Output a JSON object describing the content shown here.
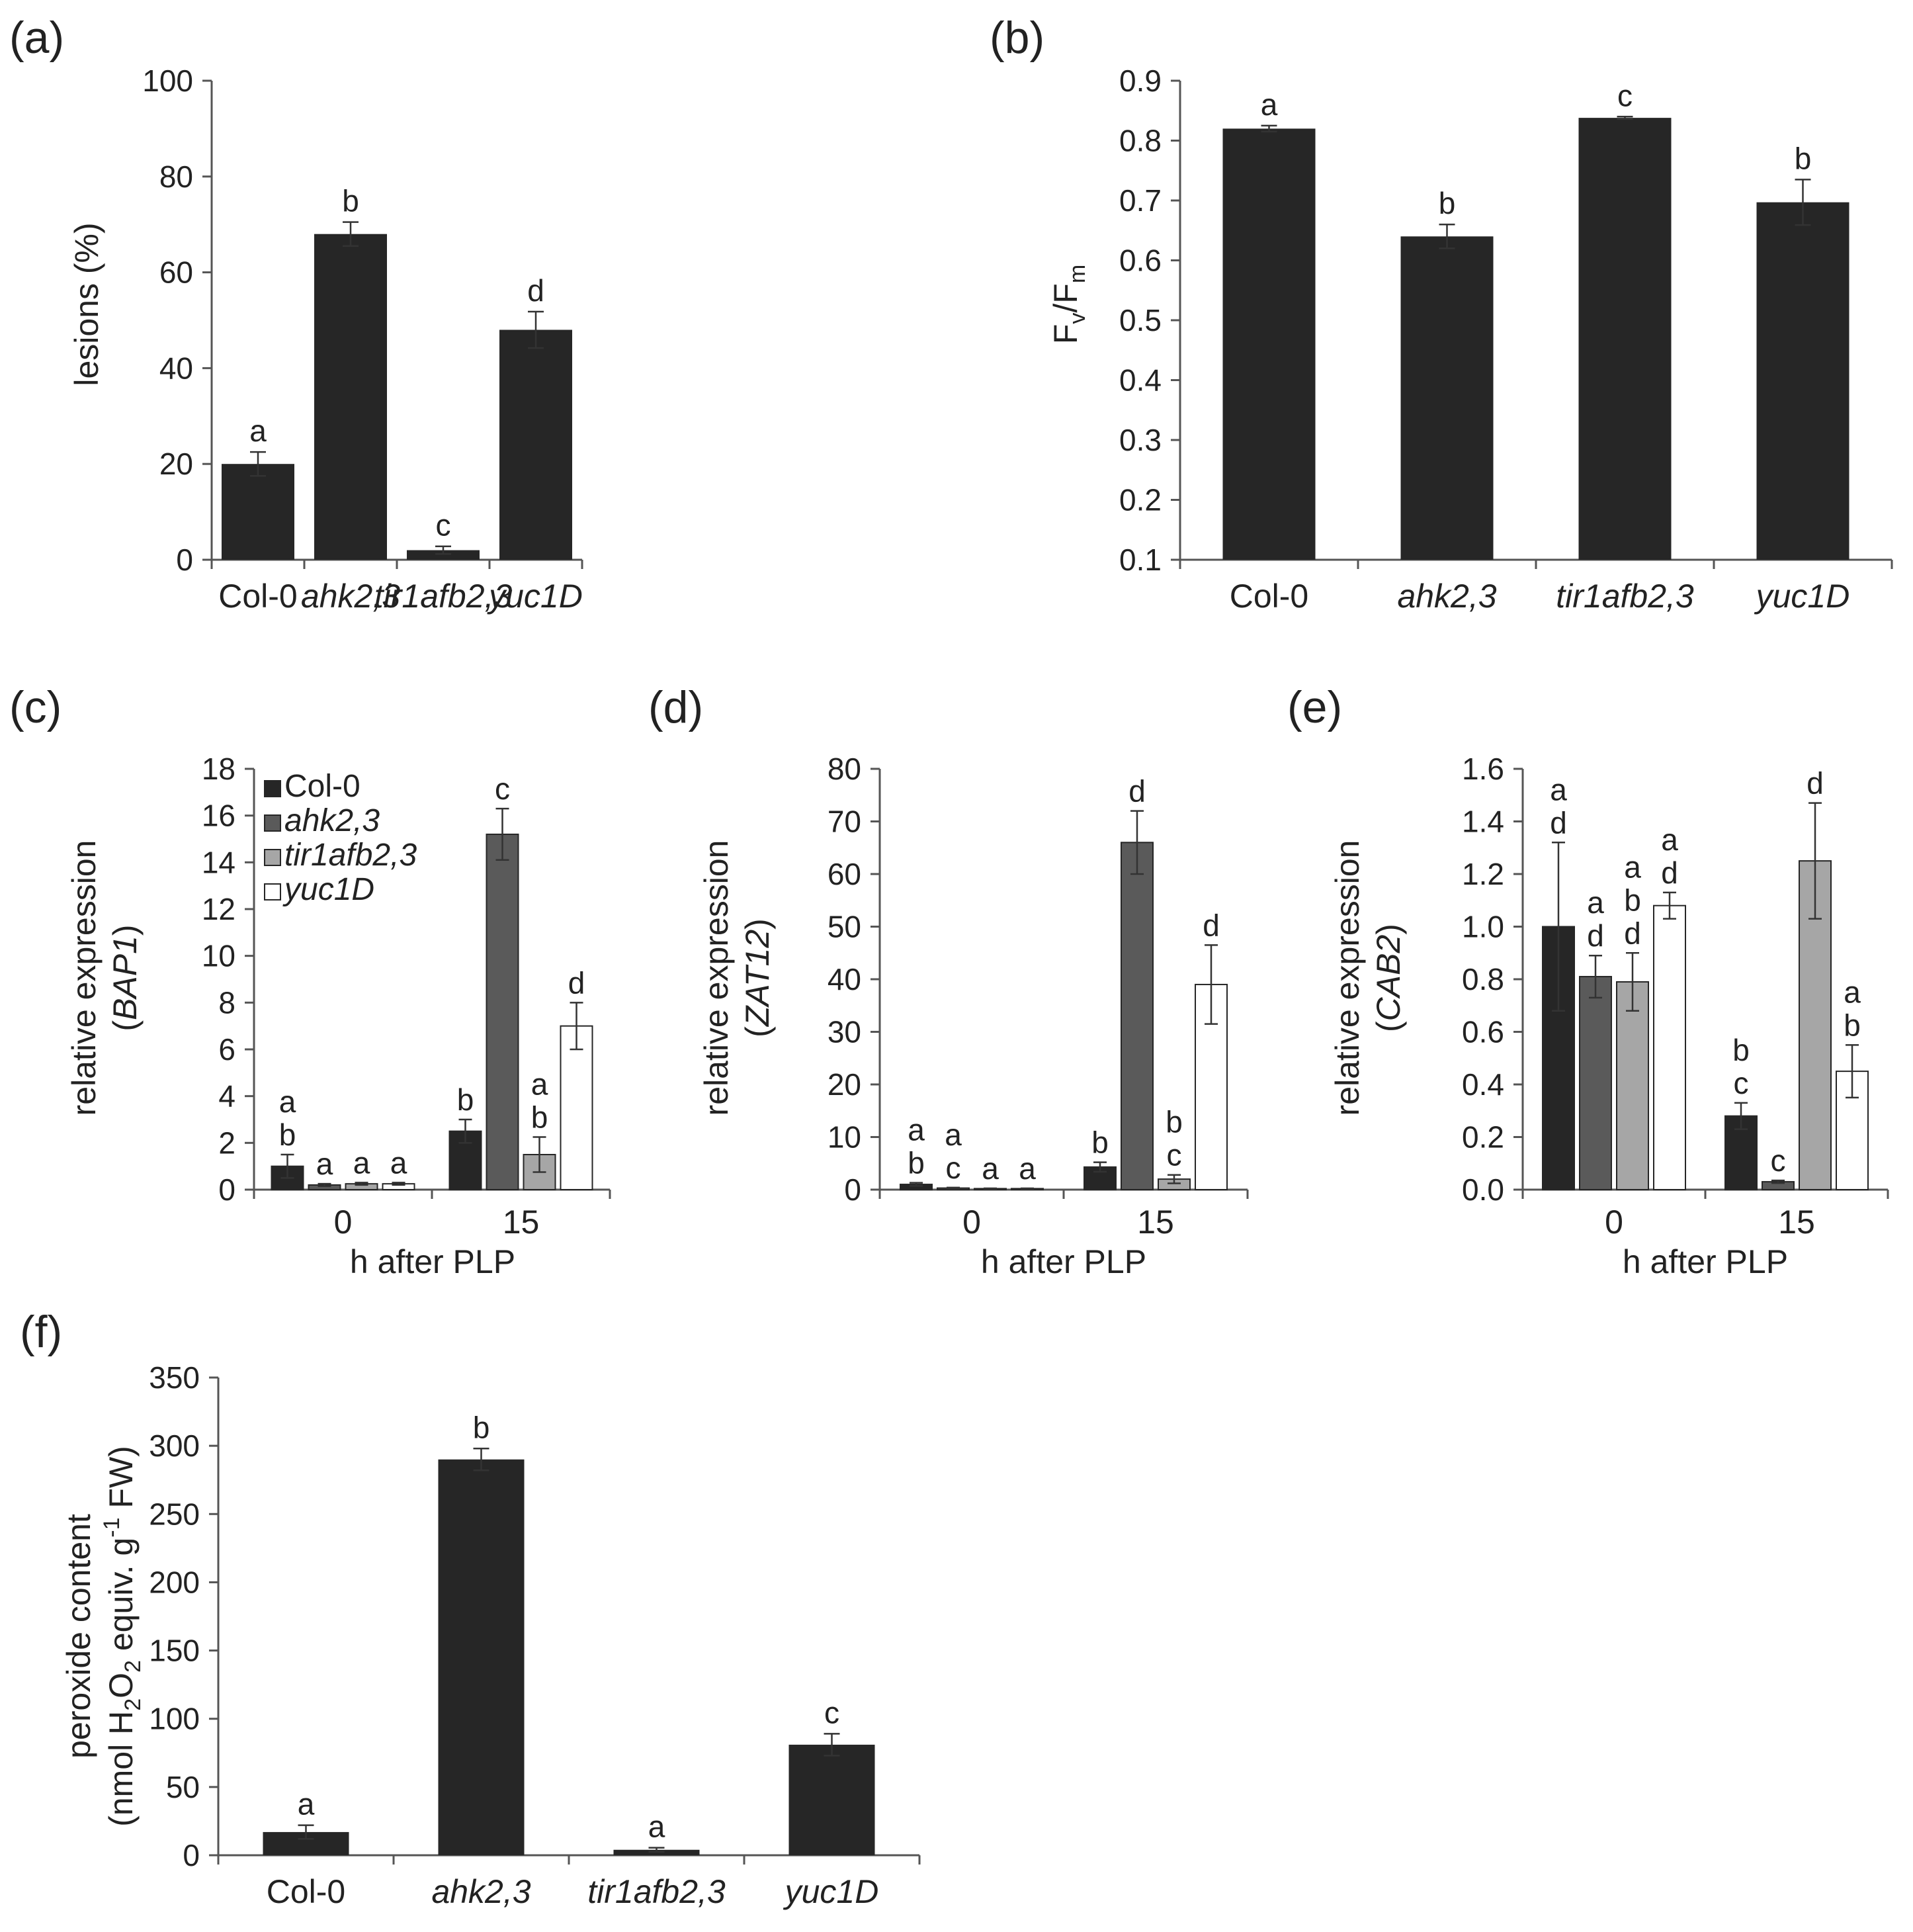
{
  "chart_data": [
    {
      "id": "a",
      "panel_label": "(a)",
      "type": "bar",
      "categories": [
        "Col-0",
        "ahk2,3",
        "tir1afb2,3",
        "yuc1D"
      ],
      "categories_italic": [
        false,
        true,
        true,
        true
      ],
      "values": [
        20,
        68,
        2,
        48
      ],
      "errors": [
        2.5,
        2.5,
        0.8,
        3.8
      ],
      "letters": [
        "a",
        "b",
        "c",
        "d"
      ],
      "ylabel": "lesions (%)",
      "ylim": [
        0,
        100
      ],
      "yticks": [
        0,
        20,
        40,
        60,
        80,
        100
      ],
      "ytick_labels": [
        "0",
        "20",
        "40",
        "60",
        "80",
        "100"
      ],
      "grid": false
    },
    {
      "id": "b",
      "panel_label": "(b)",
      "type": "bar",
      "categories": [
        "Col-0",
        "ahk2,3",
        "tir1afb2,3",
        "yuc1D"
      ],
      "categories_italic": [
        false,
        true,
        true,
        true
      ],
      "values": [
        0.82,
        0.64,
        0.838,
        0.697
      ],
      "errors": [
        0.005,
        0.02,
        0.002,
        0.038
      ],
      "letters": [
        "a",
        "b",
        "c",
        "b"
      ],
      "ylabel": "F",
      "ylabel_sub_1": "v",
      "ylabel_sep": "/F",
      "ylabel_sub_2": "m",
      "ylim": [
        0.1,
        0.9
      ],
      "yticks": [
        0.1,
        0.2,
        0.3,
        0.4,
        0.5,
        0.6,
        0.7,
        0.8,
        0.9
      ],
      "ytick_labels": [
        "0.1",
        "0.2",
        "0.3",
        "0.4",
        "0.5",
        "0.6",
        "0.7",
        "0.8",
        "0.9"
      ],
      "grid": false
    },
    {
      "id": "c",
      "panel_label": "(c)",
      "type": "bar",
      "categories": [
        "0",
        "15"
      ],
      "series": [
        {
          "name": "Col-0",
          "values": [
            1.0,
            2.5
          ],
          "errors": [
            0.5,
            0.5
          ],
          "letters": [
            [
              "a",
              "b"
            ],
            [
              "b"
            ]
          ]
        },
        {
          "name": "ahk2,3",
          "values": [
            0.2,
            15.2
          ],
          "errors": [
            0.05,
            1.1
          ],
          "letters": [
            [
              "a"
            ],
            [
              "c"
            ]
          ]
        },
        {
          "name": "tir1afb2,3",
          "values": [
            0.25,
            1.5
          ],
          "errors": [
            0.05,
            0.75
          ],
          "letters": [
            [
              "a"
            ],
            [
              "a",
              "b"
            ]
          ]
        },
        {
          "name": "yuc1D",
          "values": [
            0.25,
            7.0
          ],
          "errors": [
            0.05,
            1.0
          ],
          "letters": [
            [
              "a"
            ],
            [
              "d"
            ]
          ]
        }
      ],
      "xlabel": "h after PLP",
      "ylabel_line1": "relative expression",
      "ylabel_line2_open": "(",
      "ylabel_gene": "BAP1",
      "ylabel_line2_close": ")",
      "ylim": [
        0,
        18
      ],
      "yticks": [
        0,
        2,
        4,
        6,
        8,
        10,
        12,
        14,
        16,
        18
      ],
      "ytick_labels": [
        "0",
        "2",
        "4",
        "6",
        "8",
        "10",
        "12",
        "14",
        "16",
        "18"
      ],
      "legend": [
        "Col-0",
        "ahk2,3",
        "tir1afb2,3",
        "yuc1D"
      ],
      "legend_position": "top-left",
      "grid": false
    },
    {
      "id": "d",
      "panel_label": "(d)",
      "type": "bar",
      "categories": [
        "0",
        "15"
      ],
      "series": [
        {
          "name": "Col-0",
          "values": [
            1.0,
            4.3
          ],
          "errors": [
            0.3,
            0.9
          ],
          "letters": [
            [
              "a",
              "b"
            ],
            [
              "b"
            ]
          ]
        },
        {
          "name": "ahk2,3",
          "values": [
            0.3,
            66
          ],
          "errors": [
            0.1,
            6.0
          ],
          "letters": [
            [
              "a",
              "c"
            ],
            [
              "d"
            ]
          ]
        },
        {
          "name": "tir1afb2,3",
          "values": [
            0.2,
            2.0
          ],
          "errors": [
            0.05,
            0.8
          ],
          "letters": [
            [
              "a"
            ],
            [
              "b",
              "c"
            ]
          ]
        },
        {
          "name": "yuc1D",
          "values": [
            0.2,
            39
          ],
          "errors": [
            0.05,
            7.5
          ],
          "letters": [
            [
              "a"
            ],
            [
              "d"
            ]
          ]
        }
      ],
      "xlabel": "h after PLP",
      "ylabel_line1": "relative expression",
      "ylabel_line2_open": "(",
      "ylabel_gene": "ZAT12",
      "ylabel_line2_close": ")",
      "ylim": [
        0,
        80
      ],
      "yticks": [
        0,
        10,
        20,
        30,
        40,
        50,
        60,
        70,
        80
      ],
      "ytick_labels": [
        "0",
        "10",
        "20",
        "30",
        "40",
        "50",
        "60",
        "70",
        "80"
      ],
      "grid": false
    },
    {
      "id": "e",
      "panel_label": "(e)",
      "type": "bar",
      "categories": [
        "0",
        "15"
      ],
      "series": [
        {
          "name": "Col-0",
          "values": [
            1.0,
            0.28
          ],
          "errors": [
            0.32,
            0.05
          ],
          "letters": [
            [
              "a",
              "d"
            ],
            [
              "b",
              "c"
            ]
          ]
        },
        {
          "name": "ahk2,3",
          "values": [
            0.81,
            0.03
          ],
          "errors": [
            0.08,
            0.005
          ],
          "letters": [
            [
              "a",
              "d"
            ],
            [
              "c"
            ]
          ]
        },
        {
          "name": "tir1afb2,3",
          "values": [
            0.79,
            1.25
          ],
          "errors": [
            0.11,
            0.22
          ],
          "letters": [
            [
              "a",
              "b",
              "d"
            ],
            [
              "d"
            ]
          ]
        },
        {
          "name": "yuc1D",
          "values": [
            1.08,
            0.45
          ],
          "errors": [
            0.05,
            0.1
          ],
          "letters": [
            [
              "a",
              "d"
            ],
            [
              "a",
              "b"
            ]
          ]
        }
      ],
      "xlabel": "h after PLP",
      "ylabel_line1": "relative expression",
      "ylabel_line2_open": "(",
      "ylabel_gene": "CAB2",
      "ylabel_line2_close": ")",
      "ylim": [
        0,
        1.6
      ],
      "yticks": [
        0,
        0.2,
        0.4,
        0.6,
        0.8,
        1.0,
        1.2,
        1.4,
        1.6
      ],
      "ytick_labels": [
        "0.0",
        "0.2",
        "0.4",
        "0.6",
        "0.8",
        "1.0",
        "1.2",
        "1.4",
        "1.6"
      ],
      "grid": false
    },
    {
      "id": "f",
      "panel_label": "(f)",
      "type": "bar",
      "categories": [
        "Col-0",
        "ahk2,3",
        "tir1afb2,3",
        "yuc1D"
      ],
      "categories_italic": [
        false,
        true,
        true,
        true
      ],
      "values": [
        17,
        290,
        4,
        81
      ],
      "errors": [
        5,
        8,
        1.5,
        8
      ],
      "letters": [
        "a",
        "b",
        "a",
        "c"
      ],
      "ylabel_line1": "peroxide content",
      "ylabel_line2": "(nmol H",
      "ylabel_line2_sub1": "2",
      "ylabel_line2_mid1": "O",
      "ylabel_line2_sub2": "2",
      "ylabel_line2_mid2": " equiv. g",
      "ylabel_line2_sup": "-1",
      "ylabel_line2_end": " FW)",
      "ylim": [
        0,
        350
      ],
      "yticks": [
        0,
        50,
        100,
        150,
        200,
        250,
        300,
        350
      ],
      "ytick_labels": [
        "0",
        "50",
        "100",
        "150",
        "200",
        "250",
        "300",
        "350"
      ],
      "grid": false
    }
  ],
  "colors": {
    "bar_single": "#262626",
    "series": [
      "#262626",
      "#5a5a5a",
      "#a6a6a6",
      "#ffffff"
    ],
    "axis": "#555555",
    "bar_stroke": "#262626"
  }
}
